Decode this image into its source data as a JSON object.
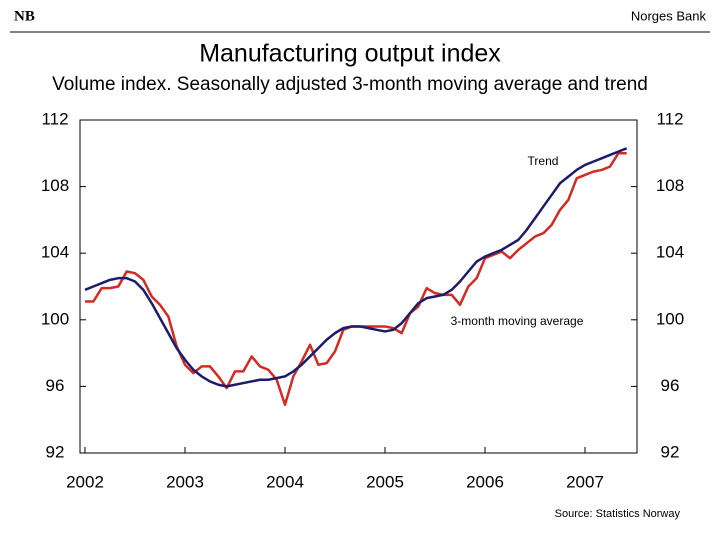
{
  "header": {
    "logo": "NB",
    "brand": "Norges Bank"
  },
  "footer": {
    "source": "Source: Statistics Norway"
  },
  "chart_data": {
    "type": "line",
    "title": "Manufacturing output index",
    "subtitle": "Volume index. Seasonally adjusted 3-month moving average and trend",
    "annotations": [
      "Trend",
      "3-month moving average"
    ],
    "x": [
      2002.0,
      2002.0833,
      2002.1667,
      2002.25,
      2002.3333,
      2002.4167,
      2002.5,
      2002.5833,
      2002.6667,
      2002.75,
      2002.8333,
      2002.9167,
      2003.0,
      2003.0833,
      2003.1667,
      2003.25,
      2003.3333,
      2003.4167,
      2003.5,
      2003.5833,
      2003.6667,
      2003.75,
      2003.8333,
      2003.9167,
      2004.0,
      2004.0833,
      2004.1667,
      2004.25,
      2004.3333,
      2004.4167,
      2004.5,
      2004.5833,
      2004.6667,
      2004.75,
      2004.8333,
      2004.9167,
      2005.0,
      2005.0833,
      2005.1667,
      2005.25,
      2005.3333,
      2005.4167,
      2005.5,
      2005.5833,
      2005.6667,
      2005.75,
      2005.8333,
      2005.9167,
      2006.0,
      2006.0833,
      2006.1667,
      2006.25,
      2006.3333,
      2006.4167,
      2006.5,
      2006.5833,
      2006.6667,
      2006.75,
      2006.8333,
      2006.9167,
      2007.0,
      2007.0833,
      2007.1667,
      2007.25,
      2007.3333,
      2007.4167
    ],
    "series": [
      {
        "name": "3-month moving average",
        "color": "#d42a22",
        "values": [
          101.1,
          101.1,
          101.9,
          101.9,
          102.0,
          102.9,
          102.8,
          102.4,
          101.4,
          100.9,
          100.2,
          98.4,
          97.3,
          96.8,
          97.2,
          97.2,
          96.6,
          95.9,
          96.9,
          96.9,
          97.8,
          97.2,
          97.0,
          96.4,
          94.9,
          96.6,
          97.5,
          98.5,
          97.3,
          97.4,
          98.1,
          99.4,
          99.6,
          99.6,
          99.6,
          99.6,
          99.6,
          99.5,
          99.2,
          100.4,
          100.8,
          101.9,
          101.6,
          101.5,
          101.5,
          100.9,
          102.0,
          102.5,
          103.7,
          103.9,
          104.1,
          103.7,
          104.2,
          104.6,
          105.0,
          105.2,
          105.7,
          106.6,
          107.2,
          108.5,
          108.7,
          108.9,
          109.0,
          109.2,
          110.0,
          110.0
        ]
      },
      {
        "name": "Trend",
        "color": "#1c1c6b",
        "values": [
          101.8,
          102.0,
          102.2,
          102.4,
          102.5,
          102.5,
          102.3,
          101.8,
          101.0,
          100.1,
          99.2,
          98.3,
          97.6,
          97.0,
          96.6,
          96.3,
          96.1,
          96.0,
          96.1,
          96.2,
          96.3,
          96.4,
          96.4,
          96.5,
          96.6,
          96.9,
          97.3,
          97.8,
          98.3,
          98.8,
          99.2,
          99.5,
          99.6,
          99.6,
          99.5,
          99.4,
          99.3,
          99.4,
          99.8,
          100.4,
          101.0,
          101.3,
          101.4,
          101.5,
          101.8,
          102.3,
          102.9,
          103.5,
          103.8,
          104.0,
          104.2,
          104.5,
          104.8,
          105.4,
          106.1,
          106.8,
          107.5,
          108.2,
          108.6,
          109.0,
          109.3,
          109.5,
          109.7,
          109.9,
          110.1,
          110.3
        ]
      }
    ],
    "xlim": [
      2001.95,
      2007.52
    ],
    "xticks": [
      2002,
      2003,
      2004,
      2005,
      2006,
      2007
    ],
    "ylim": [
      92,
      112
    ],
    "yticks": [
      92,
      96,
      100,
      104,
      108,
      112
    ],
    "y2lim": [
      92,
      112
    ],
    "y2ticks": [
      92,
      96,
      100,
      104,
      108,
      112
    ],
    "grid": false
  }
}
